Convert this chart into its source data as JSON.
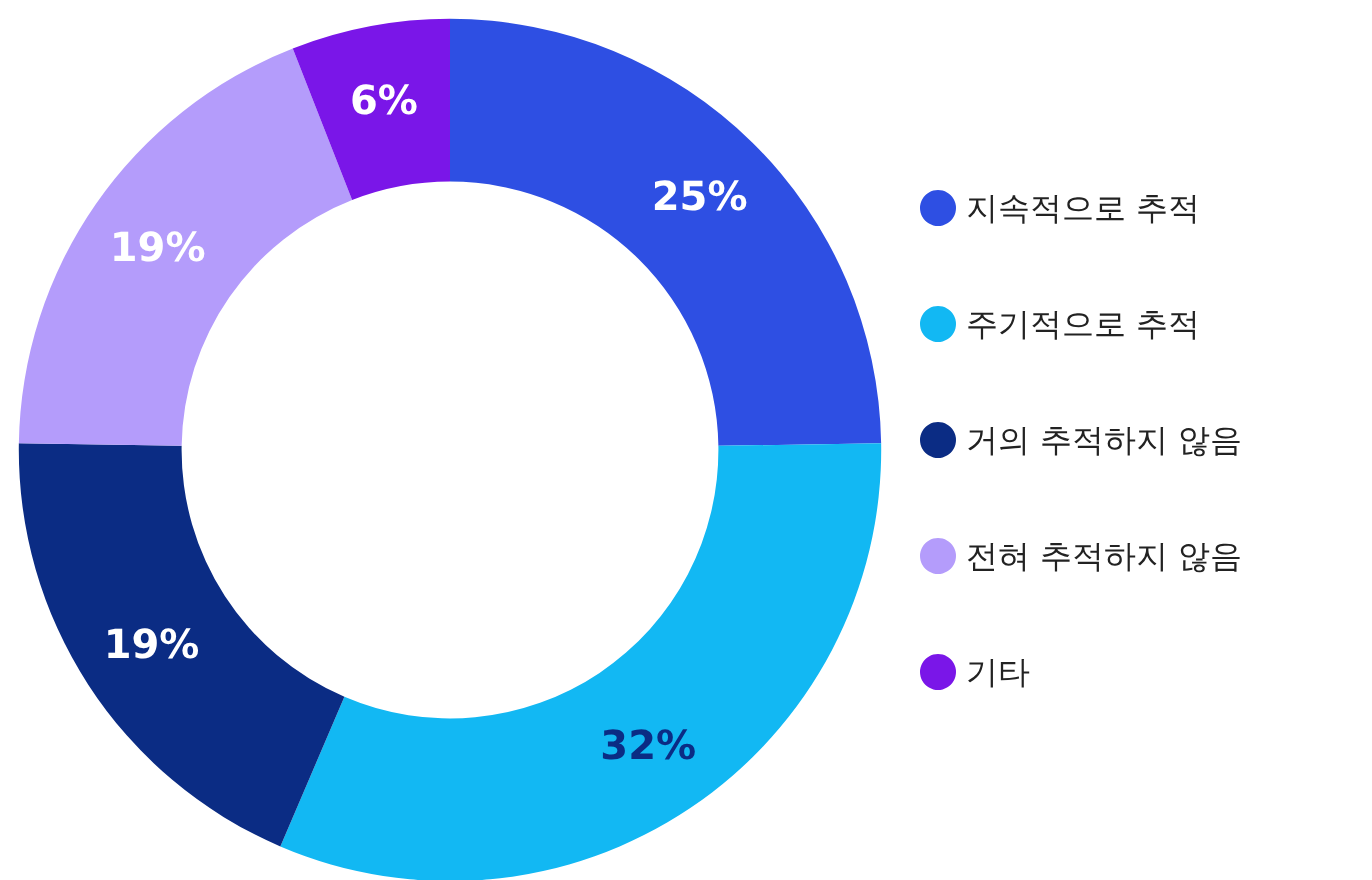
{
  "chart_data": {
    "type": "donut",
    "categories": [
      "지속적으로 추적",
      "주기적으로 추적",
      "거의 추적하지 않음",
      "전혀 추적하지 않음",
      "기타"
    ],
    "values": [
      25,
      32,
      19,
      19,
      6
    ],
    "colors": [
      "#2e4fe3",
      "#12b8f3",
      "#0b2c84",
      "#b49cfb",
      "#7a16e8"
    ],
    "value_labels": [
      "25%",
      "32%",
      "19%",
      "19%",
      "6%"
    ],
    "legend": "right"
  }
}
